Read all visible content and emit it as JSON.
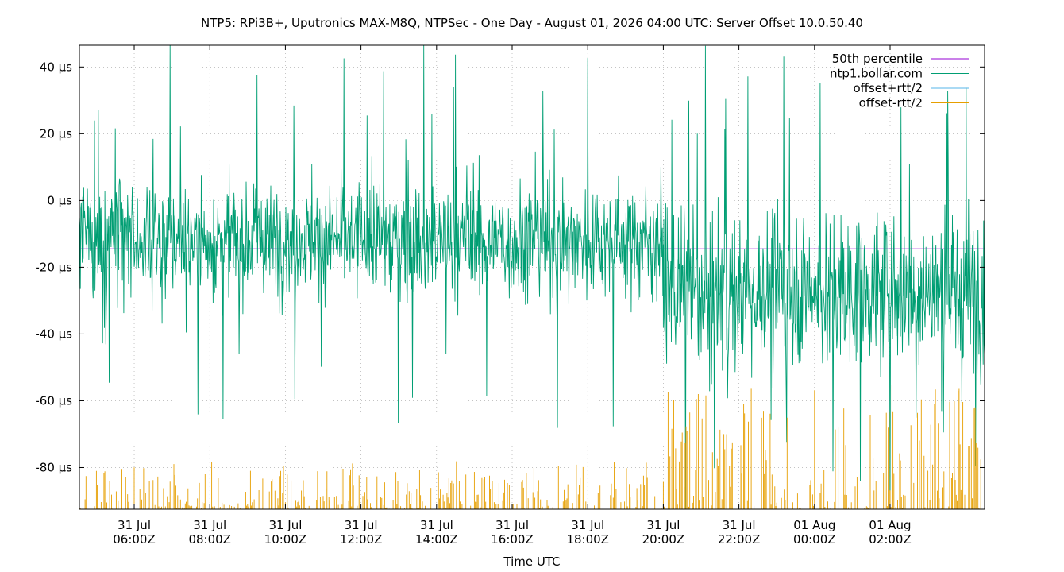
{
  "chart_data": {
    "type": "line",
    "title": "NTP5: RPi3B+, Uputronics MAX-M8Q, NTPSec - One Day - August 01, 2026 04:00 UTC: Server Offset 10.0.50.40",
    "xlabel": "Time UTC",
    "ylabel": "",
    "x_unit_hours_range": [
      4.55,
      28.5
    ],
    "ylim": [
      -92.5,
      46.5
    ],
    "y_ticks": [
      {
        "value": 40,
        "label": "40 µs"
      },
      {
        "value": 20,
        "label": "20 µs"
      },
      {
        "value": 0,
        "label": "0 µs"
      },
      {
        "value": -20,
        "label": "-20 µs"
      },
      {
        "value": -40,
        "label": "-40 µs"
      },
      {
        "value": -60,
        "label": "-60 µs"
      },
      {
        "value": -80,
        "label": "-80 µs"
      }
    ],
    "x_ticks": [
      {
        "hour": 6,
        "line1": "31 Jul",
        "line2": "06:00Z"
      },
      {
        "hour": 8,
        "line1": "31 Jul",
        "line2": "08:00Z"
      },
      {
        "hour": 10,
        "line1": "31 Jul",
        "line2": "10:00Z"
      },
      {
        "hour": 12,
        "line1": "31 Jul",
        "line2": "12:00Z"
      },
      {
        "hour": 14,
        "line1": "31 Jul",
        "line2": "14:00Z"
      },
      {
        "hour": 16,
        "line1": "31 Jul",
        "line2": "16:00Z"
      },
      {
        "hour": 18,
        "line1": "31 Jul",
        "line2": "18:00Z"
      },
      {
        "hour": 20,
        "line1": "31 Jul",
        "line2": "20:00Z"
      },
      {
        "hour": 22,
        "line1": "31 Jul",
        "line2": "22:00Z"
      },
      {
        "hour": 24,
        "line1": "01 Aug",
        "line2": "00:00Z"
      },
      {
        "hour": 26,
        "line1": "01 Aug",
        "line2": "02:00Z"
      }
    ],
    "grid": true,
    "legend_position": "top-right",
    "series": [
      {
        "name": "50th percentile",
        "color": "#9400d3",
        "kind": "constant",
        "value": -14.5
      },
      {
        "name": "ntp1.bollar.com",
        "color": "#009e73",
        "kind": "noisy",
        "segments": [
          {
            "from_hour": 4.55,
            "to_hour": 20.0,
            "center": -12,
            "spread": 34
          },
          {
            "from_hour": 20.0,
            "to_hour": 28.5,
            "center": -27,
            "spread": 46
          }
        ]
      },
      {
        "name": "offset+rtt/2",
        "color": "#56b4e9",
        "kind": "hidden"
      },
      {
        "name": "offset-rtt/2",
        "color": "#e69f00",
        "kind": "spikes",
        "segments": [
          {
            "from_hour": 4.55,
            "to_hour": 20.0,
            "base": -92.5,
            "peak": -80
          },
          {
            "from_hour": 20.0,
            "to_hour": 28.5,
            "base": -92.5,
            "peak": -60
          }
        ]
      }
    ]
  }
}
